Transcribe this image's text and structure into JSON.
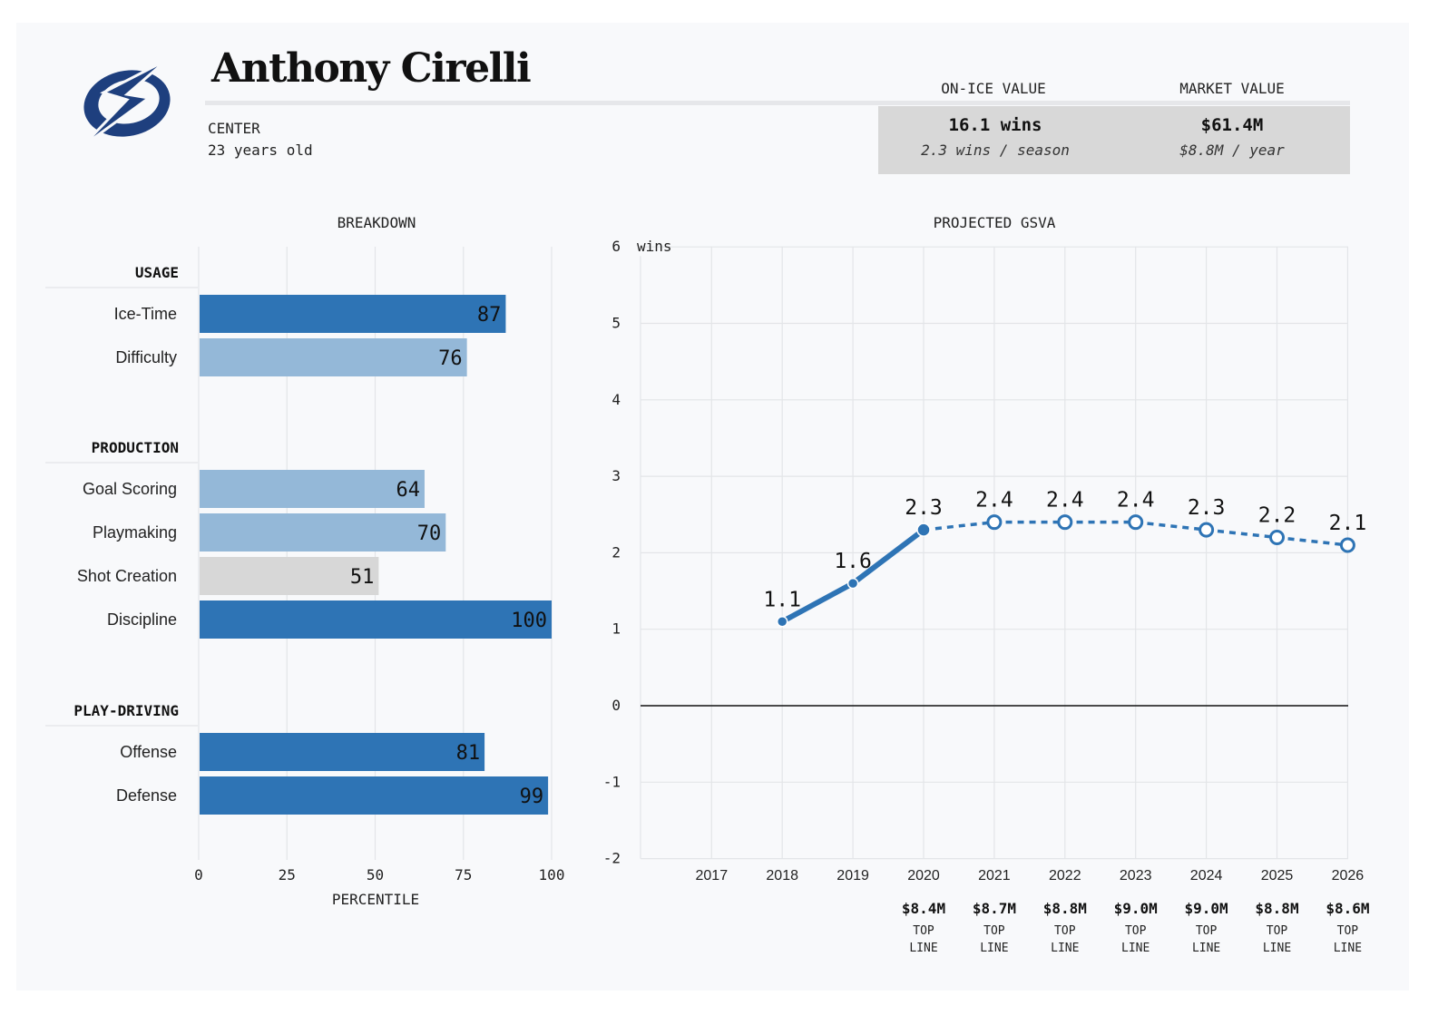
{
  "player": {
    "name": "Anthony Cirelli",
    "position": "CENTER",
    "age": "23 years old",
    "team_logo": "tampa-bay-lightning-bolt-logo",
    "team_color": "#1e3f7e"
  },
  "on_ice_value": {
    "header": "ON-ICE VALUE",
    "main": "16.1 wins",
    "sub": "2.3 wins / season"
  },
  "market_value": {
    "header": "MARKET VALUE",
    "main": "$61.4M",
    "sub": "$8.8M / year"
  },
  "colors": {
    "dark_bar": "#2e74b5",
    "light_bar": "#94b8d8",
    "neutral_bar": "#d7d7d7",
    "line": "#2e74b5",
    "value_box": "#d8d8d8"
  },
  "chart_data": [
    {
      "type": "bar",
      "title": "BREAKDOWN",
      "xlabel": "PERCENTILE",
      "xlim": [
        0,
        100
      ],
      "xticks": [
        "0",
        "25",
        "50",
        "75",
        "100"
      ],
      "grid": true,
      "groups": [
        {
          "name": "USAGE",
          "items": [
            {
              "label": "Ice-Time",
              "value": 87,
              "shade": "dark"
            },
            {
              "label": "Difficulty",
              "value": 76,
              "shade": "light"
            }
          ]
        },
        {
          "name": "PRODUCTION",
          "items": [
            {
              "label": "Goal Scoring",
              "value": 64,
              "shade": "light"
            },
            {
              "label": "Playmaking",
              "value": 70,
              "shade": "light"
            },
            {
              "label": "Shot Creation",
              "value": 51,
              "shade": "neutral"
            },
            {
              "label": "Discipline",
              "value": 100,
              "shade": "dark"
            }
          ]
        },
        {
          "name": "PLAY-DRIVING",
          "items": [
            {
              "label": "Offense",
              "value": 81,
              "shade": "dark"
            },
            {
              "label": "Defense",
              "value": 99,
              "shade": "dark"
            }
          ]
        }
      ]
    },
    {
      "type": "line",
      "title": "PROJECTED GSVA",
      "ylabel": "wins",
      "ylim": [
        -2,
        6
      ],
      "yticks": [
        "6",
        "5",
        "4",
        "3",
        "2",
        "1",
        "0",
        "-1",
        "-2"
      ],
      "xticks": [
        "2017",
        "2018",
        "2019",
        "2020",
        "2021",
        "2022",
        "2023",
        "2024",
        "2025",
        "2026"
      ],
      "grid": true,
      "series": [
        {
          "segment": "actual",
          "x": [
            2018,
            2019,
            2020
          ],
          "y": [
            1.1,
            1.6,
            2.3
          ],
          "labels": [
            "1.1",
            "1.6",
            "2.3"
          ]
        },
        {
          "segment": "projected",
          "x": [
            2020,
            2021,
            2022,
            2023,
            2024,
            2025,
            2026
          ],
          "y": [
            2.3,
            2.4,
            2.4,
            2.4,
            2.3,
            2.2,
            2.1
          ],
          "labels": [
            "",
            "2.4",
            "2.4",
            "2.4",
            "2.3",
            "2.2",
            "2.1"
          ]
        }
      ],
      "contracts": [
        {
          "year": 2020,
          "salary": "$8.4M",
          "role": [
            "TOP",
            "LINE"
          ]
        },
        {
          "year": 2021,
          "salary": "$8.7M",
          "role": [
            "TOP",
            "LINE"
          ]
        },
        {
          "year": 2022,
          "salary": "$8.8M",
          "role": [
            "TOP",
            "LINE"
          ]
        },
        {
          "year": 2023,
          "salary": "$9.0M",
          "role": [
            "TOP",
            "LINE"
          ]
        },
        {
          "year": 2024,
          "salary": "$9.0M",
          "role": [
            "TOP",
            "LINE"
          ]
        },
        {
          "year": 2025,
          "salary": "$8.8M",
          "role": [
            "TOP",
            "LINE"
          ]
        },
        {
          "year": 2026,
          "salary": "$8.6M",
          "role": [
            "TOP",
            "LINE"
          ]
        }
      ]
    }
  ]
}
